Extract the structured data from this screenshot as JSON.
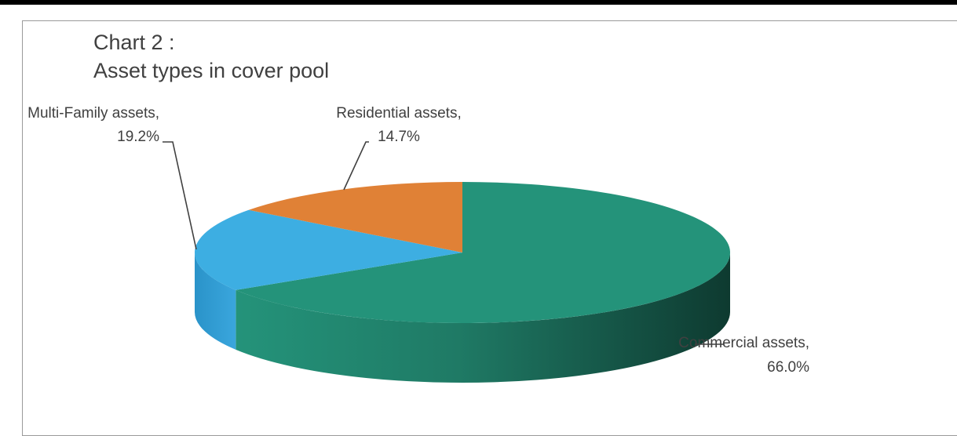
{
  "title": {
    "line1": "Chart 2 :",
    "line2": "Asset types in cover pool"
  },
  "chart_data": {
    "type": "pie",
    "style": "3d",
    "title": "Chart 2 : Asset types in cover pool",
    "slices": [
      {
        "name": "Commercial assets",
        "value": 66.0,
        "label": "66.0%",
        "color": "#24937a"
      },
      {
        "name": "Multi-Family assets",
        "value": 19.2,
        "label": "19.2%",
        "color": "#3daee2"
      },
      {
        "name": "Residential assets",
        "value": 14.7,
        "label": "14.7%",
        "color": "#e08136"
      }
    ]
  }
}
